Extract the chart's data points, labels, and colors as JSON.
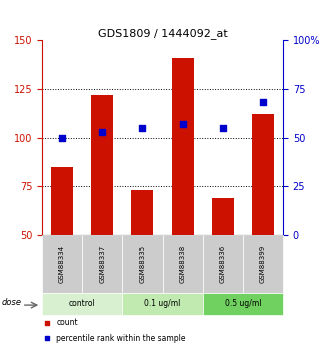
{
  "title": "GDS1809 / 1444092_at",
  "samples": [
    "GSM88334",
    "GSM88337",
    "GSM88335",
    "GSM88338",
    "GSM88336",
    "GSM88399"
  ],
  "groups": [
    "control",
    "control",
    "0.1 ug/ml",
    "0.1 ug/ml",
    "0.5 ug/ml",
    "0.5 ug/ml"
  ],
  "bar_values": [
    85,
    122,
    73,
    141,
    69,
    112
  ],
  "dot_values": [
    50,
    53,
    55,
    57,
    55,
    68
  ],
  "ylim_left": [
    50,
    150
  ],
  "ylim_right": [
    0,
    100
  ],
  "yticks_left": [
    50,
    75,
    100,
    125,
    150
  ],
  "yticks_right": [
    0,
    25,
    50,
    75,
    100
  ],
  "bar_color": "#cc1100",
  "dot_color": "#0000cc",
  "group_colors": {
    "control": "#d8f0d0",
    "0.1 ug/ml": "#c0eab0",
    "0.5 ug/ml": "#70d060"
  },
  "dose_label": "dose",
  "legend_count": "count",
  "legend_percentile": "percentile rank within the sample",
  "left_axis_color": "#cc1100",
  "right_axis_color": "#0000cc",
  "dotted_grid_values": [
    75,
    100,
    125
  ],
  "bar_width": 0.55,
  "fig_width": 3.21,
  "fig_height": 3.45,
  "dpi": 100
}
